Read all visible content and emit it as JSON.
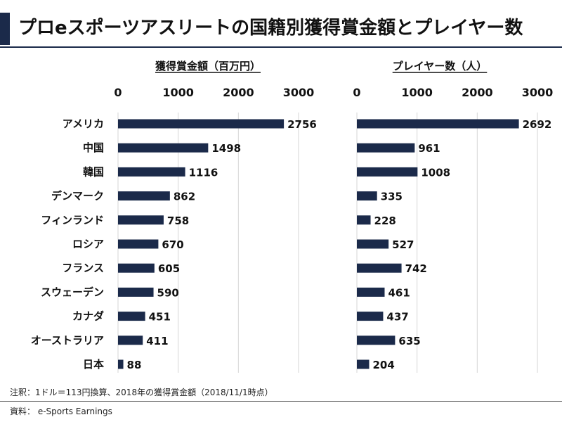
{
  "page": {
    "title": "プロeスポーツアスリートの国籍別獲得賞金額とプレイヤー数",
    "note": "注釈：1ドル＝113円換算、2018年の獲得賞金額（2018/11/1時点）",
    "source": "資料： e-Sports Earnings"
  },
  "colors": {
    "bar": "#1b2a4a",
    "accent": "#1b2a4a"
  },
  "chart_data": [
    {
      "type": "bar",
      "orientation": "horizontal",
      "title": "獲得賞金額（百万円）",
      "xlabel": "",
      "ylabel": "",
      "xlim": [
        0,
        3000
      ],
      "ticks": [
        0,
        1000,
        2000,
        3000
      ],
      "tick_labels": [
        "0",
        "1000",
        "2000",
        "3000"
      ],
      "grid": true,
      "categories": [
        "アメリカ",
        "中国",
        "韓国",
        "デンマーク",
        "フィンランド",
        "ロシア",
        "フランス",
        "スウェーデン",
        "カナダ",
        "オーストラリア",
        "日本"
      ],
      "values": [
        2756,
        1498,
        1116,
        862,
        758,
        670,
        605,
        590,
        451,
        411,
        88
      ],
      "value_labels": [
        "2756",
        "1498",
        "1116",
        "862",
        "758",
        "670",
        "605",
        "590",
        "451",
        "411",
        "88"
      ]
    },
    {
      "type": "bar",
      "orientation": "horizontal",
      "title": "プレイヤー数（人）",
      "xlabel": "",
      "ylabel": "",
      "xlim": [
        0,
        3000
      ],
      "ticks": [
        0,
        1000,
        2000,
        3000
      ],
      "tick_labels": [
        "0",
        "1000",
        "2000",
        "3000"
      ],
      "grid": true,
      "categories": [
        "アメリカ",
        "中国",
        "韓国",
        "デンマーク",
        "フィンランド",
        "ロシア",
        "フランス",
        "スウェーデン",
        "カナダ",
        "オーストラリア",
        "日本"
      ],
      "values": [
        2692,
        961,
        1008,
        335,
        228,
        527,
        742,
        461,
        437,
        635,
        204
      ],
      "value_labels": [
        "2692",
        "961",
        "1008",
        "335",
        "228",
        "527",
        "742",
        "461",
        "437",
        "635",
        "204"
      ]
    }
  ]
}
